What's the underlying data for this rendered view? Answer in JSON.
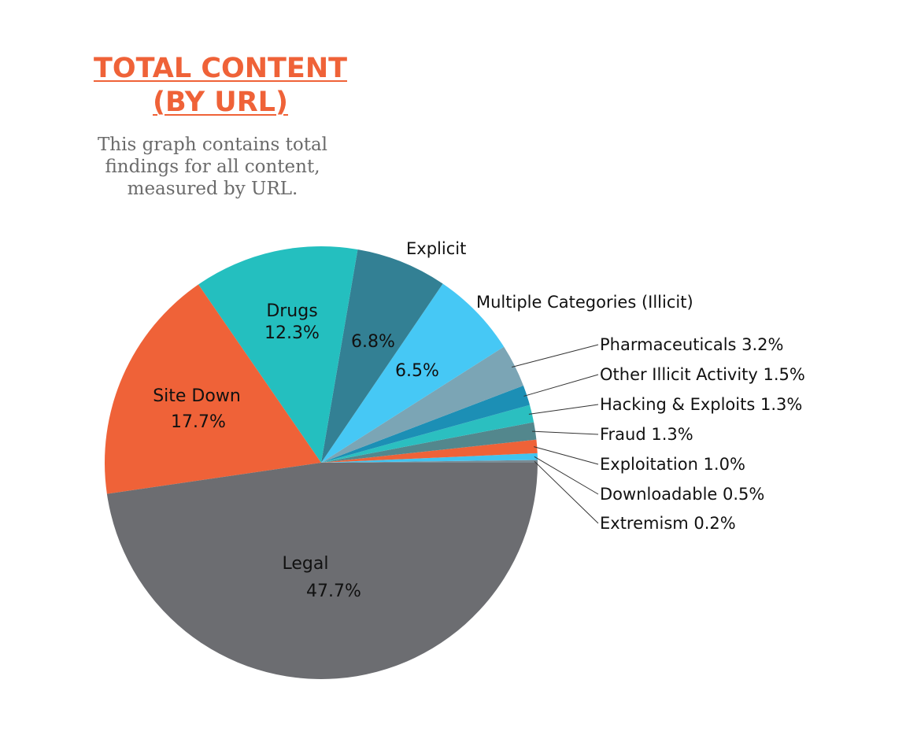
{
  "header": {
    "title_line1": "TOTAL CONTENT",
    "title_line2": "(BY URL)",
    "subtitle_line1": "This graph contains total",
    "subtitle_line2": "findings for all content,",
    "subtitle_line3": "measured by URL."
  },
  "chart_data": {
    "type": "pie",
    "start_angle_deg": 0,
    "direction": "counterclockwise",
    "slices": [
      {
        "label": "Extremism",
        "value": 0.2,
        "color": "#7b8a92",
        "display": "Extremism 0.2%"
      },
      {
        "label": "Downloadable",
        "value": 0.5,
        "color": "#41c4f0",
        "display": "Downloadable 0.5%"
      },
      {
        "label": "Exploitation",
        "value": 1.0,
        "color": "#ef6238",
        "display": "Exploitation 1.0%"
      },
      {
        "label": "Fraud",
        "value": 1.3,
        "color": "#53878d",
        "display": "Fraud 1.3%"
      },
      {
        "label": "Hacking & Exploits",
        "value": 1.3,
        "color": "#2bbfc0",
        "display": "Hacking & Exploits 1.3%"
      },
      {
        "label": "Other Illicit Activity",
        "value": 1.5,
        "color": "#1c8fb5",
        "display": "Other Illicit Activity 1.5%"
      },
      {
        "label": "Pharmaceuticals",
        "value": 3.2,
        "color": "#7ba5b5",
        "display": "Pharmaceuticals 3.2%"
      },
      {
        "label": "Multiple Categories (Illicit)",
        "value": 6.5,
        "color": "#46c8f5",
        "display": "Multiple Categories (Illicit)",
        "value_label": "6.5%"
      },
      {
        "label": "Explicit",
        "value": 6.8,
        "color": "#338094",
        "display": "Explicit",
        "value_label": "6.8%"
      },
      {
        "label": "Drugs",
        "value": 12.3,
        "color": "#24bfbf",
        "display": "Drugs",
        "value_label": "12.3%"
      },
      {
        "label": "Site Down",
        "value": 17.7,
        "color": "#ef6238",
        "display": "Site Down",
        "value_label": "17.7%"
      },
      {
        "label": "Legal",
        "value": 47.7,
        "color": "#6c6d71",
        "display": "Legal",
        "value_label": "47.7%"
      }
    ]
  }
}
